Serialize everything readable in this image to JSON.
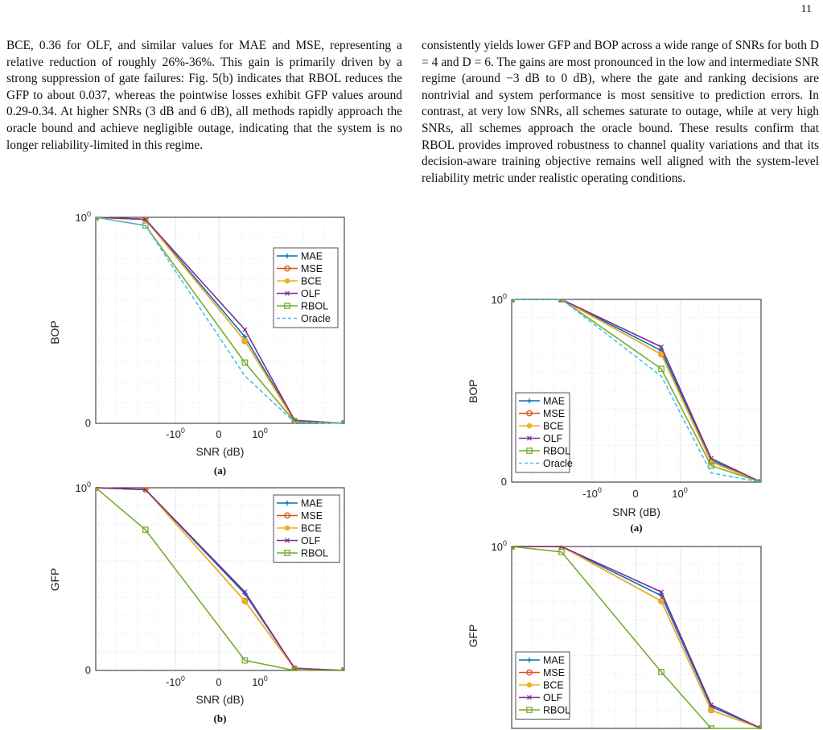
{
  "page_number": "11",
  "paragraphs": {
    "left": "BCE, 0.36 for OLF, and similar values for MAE and MSE, representing a relative reduction of roughly 26%-36%. This gain is primarily driven by a strong suppression of gate failures: Fig. 5(b) indicates that RBOL reduces the GFP to about 0.037, whereas the pointwise losses exhibit GFP values around 0.29-0.34. At higher SNRs (3 dB and 6 dB), all methods rapidly approach the oracle bound and achieve negligible outage, indicating that the system is no longer reliability-limited in this regime.",
    "right": "consistently yields lower GFP and BOP across a wide range of SNRs for both D = 4 and D = 6. The gains are most pronounced in the low and intermediate SNR regime (around −3 dB to 0 dB), where the gate and ranking decisions are nontrivial and system performance is most sensitive to prediction errors. In contrast, at very low SNRs, all schemes saturate to outage, while at very high SNRs, all schemes approach the oracle bound. These results confirm that RBOL provides improved robustness to channel quality variations and that its decision-aware training objective remains well aligned with the system-level reliability metric under realistic operating conditions."
  },
  "colors": {
    "MAE": "#0072BD",
    "MSE": "#D95319",
    "BCE": "#EDB120",
    "OLF": "#7E2F8E",
    "RBOL": "#77AC30",
    "Oracle": "#4DBEEE"
  },
  "chart_data": [
    {
      "id": "left-a",
      "type": "line",
      "caption": "(a)",
      "xlabel": "SNR (dB)",
      "ylabel": "BOP",
      "xticks": [
        "-10^0",
        "0",
        "10^0"
      ],
      "yticks": [
        "0",
        "10^0"
      ],
      "x": [
        -9,
        -6,
        -3,
        0,
        3,
        6
      ],
      "series": [
        {
          "name": "MAE",
          "marker": "plus",
          "values": [
            1.0,
            0.99,
            null,
            0.42,
            0.012,
            0.0
          ]
        },
        {
          "name": "MSE",
          "marker": "circle",
          "values": [
            1.0,
            0.99,
            null,
            0.4,
            0.012,
            0.0
          ]
        },
        {
          "name": "BCE",
          "marker": "dot",
          "values": [
            1.0,
            0.99,
            null,
            0.4,
            0.01,
            0.0
          ]
        },
        {
          "name": "OLF",
          "marker": "x",
          "values": [
            1.0,
            0.99,
            null,
            0.455,
            0.015,
            0.0
          ]
        },
        {
          "name": "RBOL",
          "marker": "square",
          "values": [
            1.0,
            0.96,
            null,
            0.295,
            0.008,
            0.0
          ]
        },
        {
          "name": "Oracle",
          "marker": "none",
          "dashed": true,
          "values": [
            1.0,
            0.96,
            null,
            0.23,
            0.005,
            0.0
          ]
        }
      ]
    },
    {
      "id": "left-b",
      "type": "line",
      "caption": "(b)",
      "xlabel": "SNR (dB)",
      "ylabel": "GFP",
      "xticks": [
        "-10^0",
        "0",
        "10^0"
      ],
      "yticks": [
        "0",
        "10^0"
      ],
      "x": [
        -9,
        -6,
        -3,
        0,
        3,
        6
      ],
      "series": [
        {
          "name": "MAE",
          "marker": "plus",
          "values": [
            1.0,
            0.99,
            null,
            0.42,
            0.012,
            0.0
          ]
        },
        {
          "name": "MSE",
          "marker": "circle",
          "values": [
            1.0,
            0.99,
            null,
            0.38,
            0.01,
            0.0
          ]
        },
        {
          "name": "BCE",
          "marker": "dot",
          "values": [
            1.0,
            0.99,
            null,
            0.38,
            0.01,
            0.0
          ]
        },
        {
          "name": "OLF",
          "marker": "x",
          "values": [
            1.0,
            0.99,
            null,
            0.43,
            0.012,
            0.0
          ]
        },
        {
          "name": "RBOL",
          "marker": "square",
          "values": [
            1.0,
            0.77,
            null,
            0.055,
            0.0,
            0.0
          ]
        }
      ]
    },
    {
      "id": "right-a",
      "type": "line",
      "caption": "(a)",
      "xlabel": "SNR (dB)",
      "ylabel": "BOP",
      "xticks": [
        "-10^0",
        "0",
        "10^0"
      ],
      "yticks": [
        "0",
        "10^0"
      ],
      "x": [
        -9,
        -6,
        -3,
        0,
        3,
        6
      ],
      "series": [
        {
          "name": "MAE",
          "marker": "plus",
          "values": [
            1.0,
            1.0,
            null,
            0.72,
            0.12,
            0.0
          ]
        },
        {
          "name": "MSE",
          "marker": "circle",
          "values": [
            1.0,
            1.0,
            null,
            0.7,
            0.11,
            0.0
          ]
        },
        {
          "name": "BCE",
          "marker": "dot",
          "values": [
            1.0,
            1.0,
            null,
            0.7,
            0.11,
            0.0
          ]
        },
        {
          "name": "OLF",
          "marker": "x",
          "values": [
            1.0,
            1.0,
            null,
            0.74,
            0.13,
            0.0
          ]
        },
        {
          "name": "RBOL",
          "marker": "square",
          "values": [
            1.0,
            1.0,
            null,
            0.62,
            0.09,
            0.0
          ]
        },
        {
          "name": "Oracle",
          "marker": "none",
          "dashed": true,
          "values": [
            1.0,
            1.0,
            null,
            0.58,
            0.05,
            0.0
          ]
        }
      ]
    },
    {
      "id": "right-b",
      "type": "line",
      "caption": "",
      "xlabel": "",
      "ylabel": "GFP",
      "xticks": [],
      "yticks": [
        "10^0"
      ],
      "x": [
        -9,
        -6,
        -3,
        0,
        3,
        6
      ],
      "series": [
        {
          "name": "MAE",
          "marker": "plus",
          "values": [
            1.0,
            1.0,
            null,
            0.73,
            0.12,
            0.0
          ]
        },
        {
          "name": "MSE",
          "marker": "circle",
          "values": [
            1.0,
            1.0,
            null,
            0.7,
            0.1,
            0.0
          ]
        },
        {
          "name": "BCE",
          "marker": "dot",
          "values": [
            1.0,
            1.0,
            null,
            0.7,
            0.1,
            0.0
          ]
        },
        {
          "name": "OLF",
          "marker": "x",
          "values": [
            1.0,
            1.0,
            null,
            0.75,
            0.13,
            0.0
          ]
        },
        {
          "name": "RBOL",
          "marker": "square",
          "values": [
            1.0,
            0.97,
            null,
            0.31,
            0.0,
            0.0
          ]
        }
      ]
    }
  ]
}
